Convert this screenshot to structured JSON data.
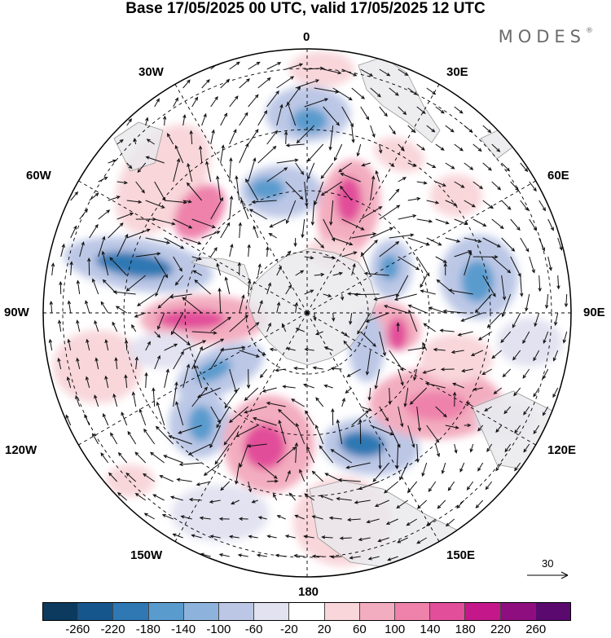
{
  "title": "Base 17/05/2025 00 UTC, valid 17/05/2025 12 UTC",
  "brand": "MODES",
  "brand_mark": "®",
  "labels": {
    "lon0": "0",
    "lon30e": "30E",
    "lon60e": "60E",
    "lon90e": "90E",
    "lon120e": "120E",
    "lon150e": "150E",
    "lon180": "180",
    "lon150w": "150W",
    "lon120w": "120W",
    "lon90w": "90W",
    "lon60w": "60W",
    "lon30w": "30W"
  },
  "wind_scale": "30",
  "colorbar": {
    "colors": [
      "#0b3a5e",
      "#15568d",
      "#2f78b4",
      "#5a9bce",
      "#8db3dc",
      "#bcc7e6",
      "#e2e2f1",
      "#ffffff",
      "#f8d6da",
      "#f3adc0",
      "#ee82ab",
      "#e24e9a",
      "#c4188a",
      "#8e0e7f",
      "#5a0a6e"
    ],
    "ticks": [
      "-260",
      "-220",
      "-180",
      "-140",
      "-100",
      "-60",
      "-20",
      "20",
      "60",
      "100",
      "140",
      "180",
      "220",
      "260"
    ]
  }
}
